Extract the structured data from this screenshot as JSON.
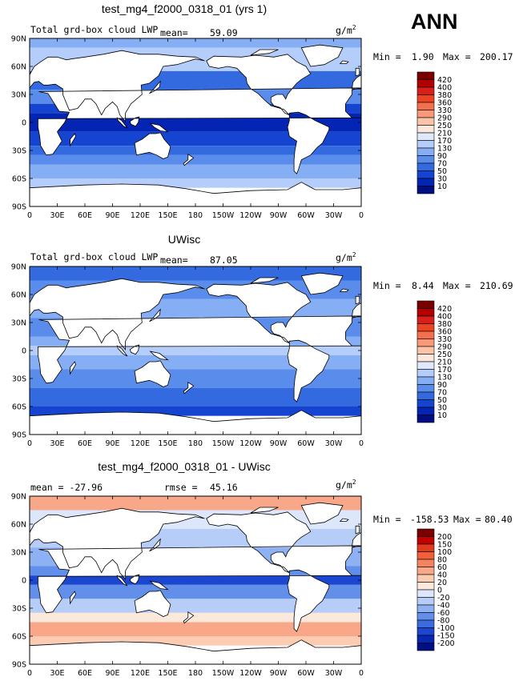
{
  "season": "ANN",
  "chart_data": [
    {
      "type": "heatmap",
      "title": "test_mg4_f2000_0318_01 (yrs 1)",
      "left_label": "Total grd-box cloud LWP",
      "mean_label": "mean=",
      "mean_value": "59.09",
      "units": "g/m",
      "units_exp": "2",
      "min_label": "Min =",
      "min_value": "1.90",
      "max_label": "Max =",
      "max_value": "200.17",
      "x_ticks": [
        "0",
        "30E",
        "60E",
        "90E",
        "120E",
        "150E",
        "180",
        "150W",
        "120W",
        "90W",
        "60W",
        "30W",
        "0"
      ],
      "y_ticks": [
        "90N",
        "60N",
        "30N",
        "0",
        "30S",
        "60S",
        "90S"
      ],
      "colorbar": {
        "labels": [
          "420",
          "400",
          "380",
          "360",
          "330",
          "290",
          "250",
          "210",
          "170",
          "130",
          "90",
          "70",
          "50",
          "30",
          "10"
        ],
        "colors": [
          "#7a0000",
          "#b30000",
          "#d7201a",
          "#ec4422",
          "#f46f4b",
          "#f9997a",
          "#fbc3a8",
          "#fbe7dc",
          "#dfe9fb",
          "#b4cdfa",
          "#86aef4",
          "#5a8deb",
          "#346ae0",
          "#1545d0",
          "#0424b4",
          "#000e83"
        ]
      }
    },
    {
      "type": "heatmap",
      "title": "UWisc",
      "left_label": "Total grd-box cloud LWP",
      "mean_label": "mean=",
      "mean_value": "87.05",
      "units": "g/m",
      "units_exp": "2",
      "min_label": "Min =",
      "min_value": "8.44",
      "max_label": "Max =",
      "max_value": "210.69",
      "x_ticks": [
        "0",
        "30E",
        "60E",
        "90E",
        "120E",
        "150E",
        "180",
        "150W",
        "120W",
        "90W",
        "60W",
        "30W",
        "0"
      ],
      "y_ticks": [
        "90N",
        "60N",
        "30N",
        "0",
        "30S",
        "60S",
        "90S"
      ],
      "colorbar": {
        "labels": [
          "420",
          "400",
          "380",
          "360",
          "330",
          "290",
          "250",
          "210",
          "170",
          "130",
          "90",
          "70",
          "50",
          "30",
          "10"
        ],
        "colors": [
          "#7a0000",
          "#b30000",
          "#d7201a",
          "#ec4422",
          "#f46f4b",
          "#f9997a",
          "#fbc3a8",
          "#fbe7dc",
          "#dfe9fb",
          "#b4cdfa",
          "#86aef4",
          "#5a8deb",
          "#346ae0",
          "#1545d0",
          "#0424b4",
          "#000e83"
        ]
      }
    },
    {
      "type": "heatmap",
      "title": "test_mg4_f2000_0318_01 - UWisc",
      "left_label": "mean = -27.96",
      "rmse_label": "rmse =",
      "rmse_value": "45.16",
      "units": "g/m",
      "units_exp": "2",
      "min_label": "Min =",
      "min_value": "-158.53",
      "max_label": "Max =",
      "max_value": "80.40",
      "x_ticks": [
        "0",
        "30E",
        "60E",
        "90E",
        "120E",
        "150E",
        "180",
        "150W",
        "120W",
        "90W",
        "60W",
        "30W",
        "0"
      ],
      "y_ticks": [
        "90N",
        "60N",
        "30N",
        "0",
        "30S",
        "60S",
        "90S"
      ],
      "colorbar": {
        "labels": [
          "200",
          "150",
          "100",
          "80",
          "60",
          "40",
          "20",
          "0",
          "-20",
          "-40",
          "-60",
          "-80",
          "-100",
          "-150",
          "-200"
        ],
        "colors": [
          "#7a0000",
          "#c20000",
          "#e23a1c",
          "#f0603a",
          "#f4845f",
          "#f8a888",
          "#fbcbb2",
          "#fde9dc",
          "#dde7fb",
          "#b6cdf8",
          "#8db1f2",
          "#628fe9",
          "#3a6bdf",
          "#1b46cf",
          "#0626b3",
          "#001082"
        ]
      }
    }
  ]
}
